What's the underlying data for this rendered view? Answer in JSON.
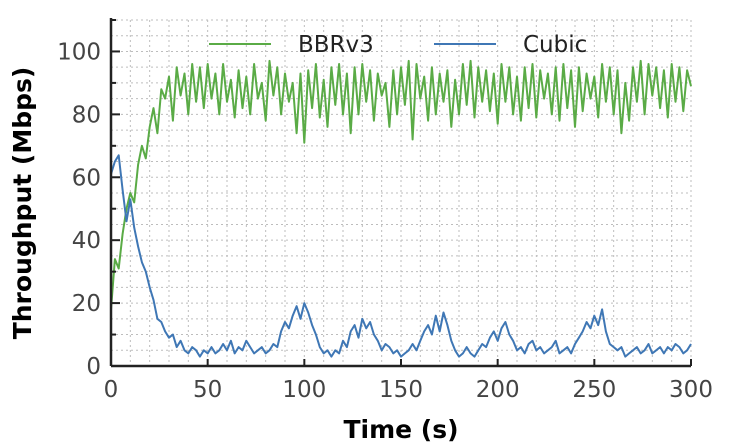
{
  "chart_data": {
    "type": "line",
    "title": "",
    "xlabel": "Time (s)",
    "ylabel": "Throughput (Mbps)",
    "xlim": [
      0,
      300
    ],
    "ylim": [
      0,
      110
    ],
    "xticks": [
      0,
      50,
      100,
      150,
      200,
      250,
      300
    ],
    "yticks": [
      0,
      20,
      40,
      60,
      80,
      100
    ],
    "grid": true,
    "legend_position": "top",
    "series": [
      {
        "name": "BBRv3",
        "color": "#5aab46",
        "x": [
          0,
          2,
          4,
          6,
          8,
          10,
          12,
          14,
          16,
          18,
          20,
          22,
          24,
          26,
          28,
          30,
          32,
          34,
          36,
          38,
          40,
          42,
          44,
          46,
          48,
          50,
          52,
          54,
          56,
          58,
          60,
          62,
          64,
          66,
          68,
          70,
          72,
          74,
          76,
          78,
          80,
          82,
          84,
          86,
          88,
          90,
          92,
          94,
          96,
          98,
          100,
          102,
          104,
          106,
          108,
          110,
          112,
          114,
          116,
          118,
          120,
          122,
          124,
          126,
          128,
          130,
          132,
          134,
          136,
          138,
          140,
          142,
          144,
          146,
          148,
          150,
          152,
          154,
          156,
          158,
          160,
          162,
          164,
          166,
          168,
          170,
          172,
          174,
          176,
          178,
          180,
          182,
          184,
          186,
          188,
          190,
          192,
          194,
          196,
          198,
          200,
          202,
          204,
          206,
          208,
          210,
          212,
          214,
          216,
          218,
          220,
          222,
          224,
          226,
          228,
          230,
          232,
          234,
          236,
          238,
          240,
          242,
          244,
          246,
          248,
          250,
          252,
          254,
          256,
          258,
          260,
          262,
          264,
          266,
          268,
          270,
          272,
          274,
          276,
          278,
          280,
          282,
          284,
          286,
          288,
          290,
          292,
          294,
          296,
          298,
          300
        ],
        "values": [
          18,
          34,
          31,
          42,
          50,
          55,
          52,
          64,
          70,
          66,
          76,
          82,
          74,
          88,
          85,
          92,
          78,
          95,
          86,
          93,
          80,
          96,
          84,
          95,
          82,
          96,
          85,
          93,
          80,
          96,
          84,
          91,
          79,
          94,
          82,
          92,
          80,
          96,
          85,
          90,
          78,
          97,
          86,
          95,
          80,
          93,
          84,
          90,
          74,
          93,
          71,
          94,
          82,
          96,
          79,
          91,
          76,
          95,
          83,
          96,
          80,
          93,
          74,
          95,
          80,
          96,
          84,
          94,
          78,
          93,
          86,
          90,
          76,
          94,
          80,
          95,
          83,
          97,
          72,
          96,
          85,
          92,
          78,
          95,
          80,
          93,
          84,
          94,
          76,
          91,
          80,
          96,
          83,
          97,
          79,
          95,
          84,
          94,
          81,
          93,
          77,
          96,
          84,
          95,
          80,
          92,
          78,
          95,
          82,
          96,
          79,
          94,
          85,
          93,
          80,
          95,
          78,
          96,
          82,
          94,
          76,
          95,
          81,
          93,
          85,
          92,
          79,
          96,
          84,
          95,
          80,
          94,
          74,
          90,
          78,
          95,
          84,
          97,
          80,
          96,
          86,
          95,
          82,
          94,
          79,
          96,
          84,
          95,
          81,
          94,
          89
        ]
      },
      {
        "name": "Cubic",
        "color": "#3f77b5",
        "x": [
          0,
          2,
          4,
          6,
          8,
          10,
          12,
          14,
          16,
          18,
          20,
          22,
          24,
          26,
          28,
          30,
          32,
          34,
          36,
          38,
          40,
          42,
          44,
          46,
          48,
          50,
          52,
          54,
          56,
          58,
          60,
          62,
          64,
          66,
          68,
          70,
          72,
          74,
          76,
          78,
          80,
          82,
          84,
          86,
          88,
          90,
          92,
          94,
          96,
          98,
          100,
          102,
          104,
          106,
          108,
          110,
          112,
          114,
          116,
          118,
          120,
          122,
          124,
          126,
          128,
          130,
          132,
          134,
          136,
          138,
          140,
          142,
          144,
          146,
          148,
          150,
          152,
          154,
          156,
          158,
          160,
          162,
          164,
          166,
          168,
          170,
          172,
          174,
          176,
          178,
          180,
          182,
          184,
          186,
          188,
          190,
          192,
          194,
          196,
          198,
          200,
          202,
          204,
          206,
          208,
          210,
          212,
          214,
          216,
          218,
          220,
          222,
          224,
          226,
          228,
          230,
          232,
          234,
          236,
          238,
          240,
          242,
          244,
          246,
          248,
          250,
          252,
          254,
          256,
          258,
          260,
          262,
          264,
          266,
          268,
          270,
          272,
          274,
          276,
          278,
          280,
          282,
          284,
          286,
          288,
          290,
          292,
          294,
          296,
          298,
          300
        ],
        "values": [
          61,
          65,
          67,
          56,
          46,
          53,
          44,
          38,
          33,
          30,
          25,
          21,
          15,
          14,
          11,
          9,
          10,
          6,
          8,
          5,
          4,
          6,
          5,
          3,
          5,
          4,
          6,
          4,
          5,
          7,
          5,
          8,
          4,
          6,
          5,
          8,
          6,
          4,
          5,
          6,
          4,
          5,
          7,
          6,
          11,
          14,
          12,
          16,
          19,
          15,
          20,
          17,
          13,
          10,
          6,
          4,
          5,
          3,
          5,
          4,
          8,
          6,
          11,
          13,
          9,
          15,
          12,
          14,
          10,
          8,
          5,
          7,
          6,
          4,
          5,
          3,
          4,
          5,
          7,
          5,
          8,
          11,
          13,
          10,
          16,
          11,
          17,
          13,
          8,
          5,
          3,
          4,
          6,
          4,
          3,
          5,
          7,
          6,
          9,
          11,
          8,
          12,
          14,
          10,
          8,
          5,
          6,
          4,
          7,
          8,
          5,
          6,
          4,
          5,
          6,
          8,
          4,
          5,
          6,
          4,
          7,
          9,
          11,
          14,
          12,
          16,
          13,
          18,
          11,
          7,
          6,
          5,
          6,
          3,
          4,
          5,
          6,
          4,
          5,
          7,
          4,
          5,
          6,
          4,
          6,
          5,
          7,
          6,
          4,
          5,
          7
        ]
      }
    ]
  }
}
